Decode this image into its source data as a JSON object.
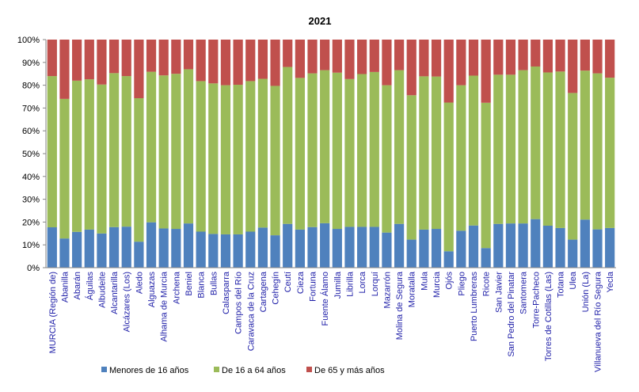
{
  "chart_data": {
    "type": "bar",
    "stacked": true,
    "title": "2021",
    "xlabel": "",
    "ylabel": "",
    "ylim": [
      0,
      100
    ],
    "yticks": [
      "0%",
      "10%",
      "20%",
      "30%",
      "40%",
      "50%",
      "60%",
      "70%",
      "80%",
      "90%",
      "100%"
    ],
    "grid": false,
    "legend_position": "bottom",
    "categories": [
      "MURCIA (Región de)",
      "Abanilla",
      "Abarán",
      "Águilas",
      "Albudeite",
      "Alcantarilla",
      "Alcázares (Los)",
      "Aledo",
      "Alguazas",
      "Alhama de Murcia",
      "Archena",
      "Beniel",
      "Blanca",
      "Bullas",
      "Calasparra",
      "Campos del Río",
      "Caravaca de la Cruz",
      "Cartagena",
      "Cehegín",
      "Ceutí",
      "Cieza",
      "Fortuna",
      "Fuente Álamo",
      "Jumilla",
      "Librilla",
      "Lorca",
      "Lorquí",
      "Mazarrón",
      "Molina de Segura",
      "Moratalla",
      "Mula",
      "Murcia",
      "Ojós",
      "Pliego",
      "Puerto Lumbreras",
      "Ricote",
      "San Javier",
      "San Pedro del Pinatar",
      "Santomera",
      "Torre-Pacheco",
      "Torres de Cotillas (Las)",
      "Totana",
      "Ulea",
      "Unión (La)",
      "Villanueva del Río Segura",
      "Yecla"
    ],
    "series": [
      {
        "name": "Menores de 16 años",
        "color": "#4f81bd",
        "values": [
          17.7,
          12.8,
          15.7,
          16.7,
          15.0,
          17.8,
          18.0,
          11.4,
          19.9,
          17.2,
          17.0,
          19.4,
          15.8,
          14.8,
          14.6,
          14.6,
          15.8,
          17.6,
          14.2,
          19.2,
          16.7,
          17.8,
          19.5,
          17.0,
          17.9,
          17.9,
          17.9,
          15.4,
          19.2,
          12.3,
          16.7,
          17.0,
          7.2,
          16.2,
          18.5,
          8.6,
          19.2,
          19.4,
          19.4,
          21.3,
          18.4,
          17.4,
          12.3,
          21.1,
          16.8,
          17.4
        ]
      },
      {
        "name": "De 16 a 64 años",
        "color": "#9bbb59",
        "values": [
          66.3,
          61.2,
          66.3,
          65.9,
          65.3,
          67.5,
          66.0,
          62.9,
          66.0,
          67.1,
          68.0,
          67.6,
          66.0,
          66.0,
          65.4,
          65.6,
          66.0,
          65.2,
          65.5,
          68.8,
          66.5,
          67.4,
          67.1,
          68.5,
          64.8,
          67.0,
          67.9,
          64.6,
          67.4,
          63.3,
          67.2,
          66.8,
          65.2,
          63.8,
          65.7,
          63.7,
          65.4,
          65.2,
          67.2,
          66.9,
          67.2,
          68.6,
          64.3,
          65.3,
          68.4,
          65.9
        ]
      },
      {
        "name": "De 65 y más años",
        "color": "#c0504d",
        "values": [
          16.0,
          26.0,
          18.0,
          17.4,
          19.7,
          14.7,
          16.0,
          25.7,
          14.1,
          15.7,
          15.0,
          13.0,
          18.2,
          19.2,
          20.0,
          19.8,
          18.2,
          17.2,
          20.3,
          12.0,
          16.8,
          14.8,
          13.4,
          14.5,
          17.3,
          15.1,
          14.2,
          20.0,
          13.4,
          24.4,
          16.1,
          16.2,
          27.6,
          20.0,
          15.8,
          27.7,
          15.4,
          15.4,
          13.4,
          11.8,
          14.4,
          14.0,
          23.4,
          13.6,
          14.8,
          16.7
        ]
      }
    ]
  }
}
